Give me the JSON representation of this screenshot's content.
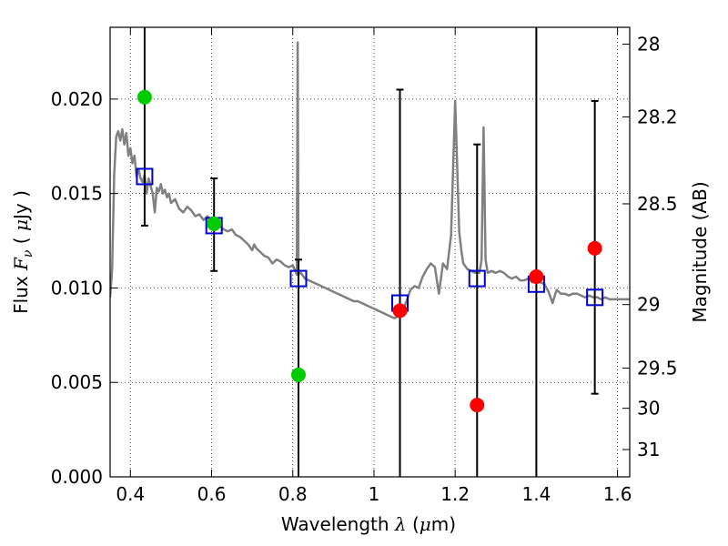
{
  "chart_data": {
    "type": "scatter",
    "title": "",
    "xlabel": "Wavelength  λ (μm)",
    "ylabel": "Flux  F_ν  ( μJy )",
    "xlabel_parts": {
      "pre": "Wavelength  ",
      "sym": "λ",
      "post": " (",
      "mu": "μ",
      "unit": "m)"
    },
    "ylabel_parts": {
      "pre": "Flux  ",
      "sym": "F",
      "sub": "ν",
      "open": "  ( ",
      "mu": "μ",
      "unit": "Jy )"
    },
    "y2label": "Magnitude (AB)",
    "xlim": [
      0.35,
      1.63
    ],
    "ylim": [
      0.0,
      0.0238
    ],
    "grid": true,
    "xticks": [
      0.4,
      0.6,
      0.8,
      1.0,
      1.2,
      1.4,
      1.6
    ],
    "xtick_labels": [
      "0.4",
      "0.6",
      "0.8",
      "1",
      "1.2",
      "1.4",
      "1.6"
    ],
    "yticks": [
      0.0,
      0.005,
      0.01,
      0.015,
      0.02
    ],
    "ytick_labels": [
      "0.000",
      "0.005",
      "0.010",
      "0.015",
      "0.020"
    ],
    "y2ticks": [
      {
        "label": "28",
        "mag": 28.0
      },
      {
        "label": "28.2",
        "mag": 28.2
      },
      {
        "label": "28.5",
        "mag": 28.5
      },
      {
        "label": "29",
        "mag": 29.0
      },
      {
        "label": "29.5",
        "mag": 29.5
      },
      {
        "label": "30",
        "mag": 30.0
      },
      {
        "label": "31",
        "mag": 31.0
      }
    ],
    "model_sed": {
      "color": "#808080",
      "points": [
        [
          0.35,
          0.0095
        ],
        [
          0.355,
          0.011
        ],
        [
          0.36,
          0.016
        ],
        [
          0.365,
          0.018
        ],
        [
          0.37,
          0.0183
        ],
        [
          0.375,
          0.0178
        ],
        [
          0.38,
          0.0184
        ],
        [
          0.385,
          0.0176
        ],
        [
          0.39,
          0.0182
        ],
        [
          0.395,
          0.017
        ],
        [
          0.4,
          0.0174
        ],
        [
          0.405,
          0.0166
        ],
        [
          0.41,
          0.017
        ],
        [
          0.415,
          0.0159
        ],
        [
          0.42,
          0.0163
        ],
        [
          0.425,
          0.0158
        ],
        [
          0.43,
          0.0156
        ],
        [
          0.435,
          0.016
        ],
        [
          0.44,
          0.015
        ],
        [
          0.445,
          0.0158
        ],
        [
          0.45,
          0.0154
        ],
        [
          0.455,
          0.015
        ],
        [
          0.46,
          0.014
        ],
        [
          0.465,
          0.0153
        ],
        [
          0.47,
          0.0151
        ],
        [
          0.475,
          0.0155
        ],
        [
          0.48,
          0.015
        ],
        [
          0.485,
          0.0152
        ],
        [
          0.49,
          0.0148
        ],
        [
          0.495,
          0.015
        ],
        [
          0.5,
          0.0145
        ],
        [
          0.51,
          0.0147
        ],
        [
          0.52,
          0.0142
        ],
        [
          0.53,
          0.014
        ],
        [
          0.54,
          0.0143
        ],
        [
          0.55,
          0.0141
        ],
        [
          0.56,
          0.0138
        ],
        [
          0.57,
          0.0139
        ],
        [
          0.58,
          0.0136
        ],
        [
          0.59,
          0.0138
        ],
        [
          0.6,
          0.0134
        ],
        [
          0.61,
          0.0133
        ],
        [
          0.62,
          0.0133
        ],
        [
          0.63,
          0.0131
        ],
        [
          0.64,
          0.013
        ],
        [
          0.65,
          0.0131
        ],
        [
          0.66,
          0.0128
        ],
        [
          0.67,
          0.0127
        ],
        [
          0.68,
          0.0125
        ],
        [
          0.69,
          0.0123
        ],
        [
          0.7,
          0.012
        ],
        [
          0.705,
          0.0123
        ],
        [
          0.71,
          0.0121
        ],
        [
          0.72,
          0.0119
        ],
        [
          0.73,
          0.0117
        ],
        [
          0.74,
          0.0116
        ],
        [
          0.75,
          0.0113
        ],
        [
          0.76,
          0.0115
        ],
        [
          0.77,
          0.0114
        ],
        [
          0.78,
          0.0112
        ],
        [
          0.79,
          0.0111
        ],
        [
          0.8,
          0.0112
        ],
        [
          0.81,
          0.0107
        ],
        [
          0.812,
          0.023
        ],
        [
          0.814,
          0.0107
        ],
        [
          0.82,
          0.0108
        ],
        [
          0.83,
          0.0105
        ],
        [
          0.84,
          0.0104
        ],
        [
          0.85,
          0.0103
        ],
        [
          0.86,
          0.0102
        ],
        [
          0.87,
          0.0101
        ],
        [
          0.88,
          0.01
        ],
        [
          0.89,
          0.0099
        ],
        [
          0.9,
          0.0098
        ],
        [
          0.91,
          0.0097
        ],
        [
          0.92,
          0.0096
        ],
        [
          0.93,
          0.0095
        ],
        [
          0.94,
          0.0094
        ],
        [
          0.95,
          0.0093
        ],
        [
          0.96,
          0.0093
        ],
        [
          0.97,
          0.0092
        ],
        [
          0.98,
          0.0091
        ],
        [
          0.99,
          0.009
        ],
        [
          1.0,
          0.0089
        ],
        [
          1.01,
          0.0088
        ],
        [
          1.02,
          0.0087
        ],
        [
          1.03,
          0.0086
        ],
        [
          1.04,
          0.0085
        ],
        [
          1.05,
          0.0084
        ],
        [
          1.06,
          0.0085
        ],
        [
          1.07,
          0.0087
        ],
        [
          1.08,
          0.0093
        ],
        [
          1.09,
          0.0099
        ],
        [
          1.1,
          0.0101
        ],
        [
          1.11,
          0.01
        ],
        [
          1.12,
          0.0106
        ],
        [
          1.13,
          0.011
        ],
        [
          1.14,
          0.0113
        ],
        [
          1.15,
          0.0111
        ],
        [
          1.16,
          0.0097
        ],
        [
          1.17,
          0.0113
        ],
        [
          1.18,
          0.011
        ],
        [
          1.19,
          0.0128
        ],
        [
          1.2,
          0.0199
        ],
        [
          1.21,
          0.013
        ],
        [
          1.215,
          0.012
        ],
        [
          1.22,
          0.0113
        ],
        [
          1.23,
          0.011
        ],
        [
          1.24,
          0.0109
        ],
        [
          1.25,
          0.0108
        ],
        [
          1.26,
          0.0108
        ],
        [
          1.265,
          0.0115
        ],
        [
          1.27,
          0.0185
        ],
        [
          1.275,
          0.0115
        ],
        [
          1.28,
          0.0108
        ],
        [
          1.29,
          0.0109
        ],
        [
          1.3,
          0.0108
        ],
        [
          1.31,
          0.0109
        ],
        [
          1.32,
          0.0108
        ],
        [
          1.33,
          0.0106
        ],
        [
          1.34,
          0.0105
        ],
        [
          1.35,
          0.0106
        ],
        [
          1.36,
          0.0104
        ],
        [
          1.37,
          0.0104
        ],
        [
          1.38,
          0.0105
        ],
        [
          1.39,
          0.0103
        ],
        [
          1.4,
          0.0104
        ],
        [
          1.41,
          0.0103
        ],
        [
          1.42,
          0.0102
        ],
        [
          1.43,
          0.0098
        ],
        [
          1.44,
          0.0092
        ],
        [
          1.45,
          0.0099
        ],
        [
          1.46,
          0.0097
        ],
        [
          1.47,
          0.0097
        ],
        [
          1.48,
          0.0096
        ],
        [
          1.49,
          0.0097
        ],
        [
          1.5,
          0.0097
        ],
        [
          1.51,
          0.0096
        ],
        [
          1.52,
          0.0095
        ],
        [
          1.53,
          0.0096
        ],
        [
          1.54,
          0.0095
        ],
        [
          1.55,
          0.0095
        ],
        [
          1.56,
          0.0094
        ],
        [
          1.57,
          0.0095
        ],
        [
          1.58,
          0.0094
        ],
        [
          1.6,
          0.0094
        ],
        [
          1.63,
          0.0094
        ]
      ]
    },
    "model_photometry": {
      "color": "#0000cc",
      "marker": "open-square",
      "points": [
        {
          "x": 0.435,
          "y": 0.0159
        },
        {
          "x": 0.606,
          "y": 0.0133
        },
        {
          "x": 0.814,
          "y": 0.0105
        },
        {
          "x": 1.064,
          "y": 0.0092
        },
        {
          "x": 1.254,
          "y": 0.0105
        },
        {
          "x": 1.4,
          "y": 0.0102
        },
        {
          "x": 1.544,
          "y": 0.0095
        }
      ]
    },
    "observed_optical": {
      "color": "#00cc00",
      "marker": "filled-circle",
      "points": [
        {
          "x": 0.435,
          "y": 0.0201,
          "err_low": 0.0133,
          "err_high": 0.0238
        },
        {
          "x": 0.606,
          "y": 0.0134,
          "err_low": 0.0109,
          "err_high": 0.0158
        },
        {
          "x": 0.814,
          "y": 0.0054,
          "err_low": 0.0,
          "err_high": 0.0115
        }
      ]
    },
    "observed_nir": {
      "color": "#ff0000",
      "marker": "filled-circle",
      "points": [
        {
          "x": 1.064,
          "y": 0.0088,
          "err_low": 0.0,
          "err_high": 0.0205
        },
        {
          "x": 1.254,
          "y": 0.0038,
          "err_low": 0.0,
          "err_high": 0.0176
        },
        {
          "x": 1.4,
          "y": 0.0106,
          "err_low": 0.0,
          "err_high": 0.0238
        },
        {
          "x": 1.544,
          "y": 0.0121,
          "err_low": 0.0044,
          "err_high": 0.0199
        }
      ]
    }
  }
}
